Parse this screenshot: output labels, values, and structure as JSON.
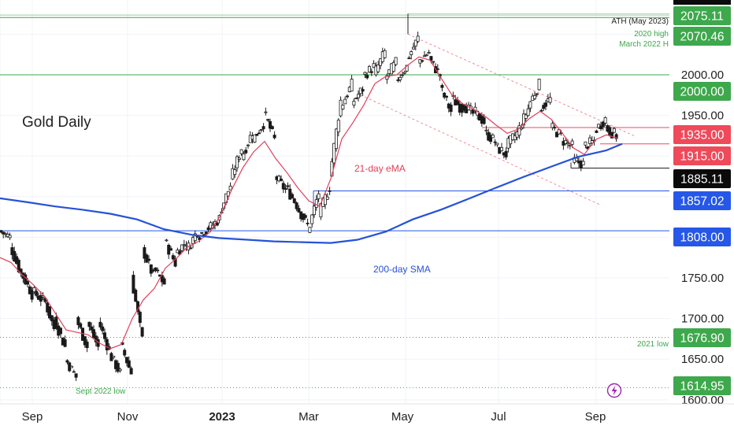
{
  "chart_data": {
    "type": "candlestick",
    "title": "Gold Daily",
    "x_ticks": [
      "Sep",
      "Nov",
      "2023",
      "Mar",
      "May",
      "Jul",
      "Sep"
    ],
    "y_ticks": [
      "1600.00",
      "1650.00",
      "1700.00",
      "1750.00",
      "1800.00",
      "1850.00",
      "1900.00",
      "1950.00",
      "2000.00",
      "2050.00"
    ],
    "ylim": [
      1595,
      2092
    ],
    "x_range": [
      "2022-08-19",
      "2023-10-18"
    ],
    "series": [
      {
        "name": "21-day eMA",
        "color": "#e0405a",
        "points": [
          [
            "2022-08-19",
            1775
          ],
          [
            "2022-08-26",
            1769
          ],
          [
            "2022-09-02",
            1754
          ],
          [
            "2022-09-09",
            1742
          ],
          [
            "2022-09-16",
            1728
          ],
          [
            "2022-09-23",
            1707
          ],
          [
            "2022-09-30",
            1686
          ],
          [
            "2022-10-07",
            1683
          ],
          [
            "2022-10-14",
            1680
          ],
          [
            "2022-10-21",
            1670
          ],
          [
            "2022-10-28",
            1663
          ],
          [
            "2022-11-04",
            1668
          ],
          [
            "2022-11-11",
            1700
          ],
          [
            "2022-11-18",
            1723
          ],
          [
            "2022-11-25",
            1737
          ],
          [
            "2022-12-02",
            1762
          ],
          [
            "2022-12-09",
            1774
          ],
          [
            "2022-12-16",
            1788
          ],
          [
            "2022-12-23",
            1795
          ],
          [
            "2022-12-30",
            1806
          ],
          [
            "2023-01-06",
            1827
          ],
          [
            "2023-01-13",
            1858
          ],
          [
            "2023-01-20",
            1885
          ],
          [
            "2023-01-27",
            1905
          ],
          [
            "2023-02-03",
            1918
          ],
          [
            "2023-02-10",
            1897
          ],
          [
            "2023-02-17",
            1880
          ],
          [
            "2023-02-24",
            1861
          ],
          [
            "2023-03-03",
            1845
          ],
          [
            "2023-03-10",
            1838
          ],
          [
            "2023-03-17",
            1872
          ],
          [
            "2023-03-24",
            1921
          ],
          [
            "2023-03-31",
            1941
          ],
          [
            "2023-04-07",
            1963
          ],
          [
            "2023-04-14",
            1989
          ],
          [
            "2023-04-21",
            1998
          ],
          [
            "2023-04-28",
            2000
          ],
          [
            "2023-05-05",
            2012
          ],
          [
            "2023-05-12",
            2022
          ],
          [
            "2023-05-19",
            2018
          ],
          [
            "2023-05-26",
            1996
          ],
          [
            "2023-06-02",
            1975
          ],
          [
            "2023-06-09",
            1964
          ],
          [
            "2023-06-16",
            1957
          ],
          [
            "2023-06-23",
            1949
          ],
          [
            "2023-06-30",
            1938
          ],
          [
            "2023-07-07",
            1928
          ],
          [
            "2023-07-14",
            1933
          ],
          [
            "2023-07-21",
            1946
          ],
          [
            "2023-07-28",
            1955
          ],
          [
            "2023-08-04",
            1945
          ],
          [
            "2023-08-11",
            1928
          ],
          [
            "2023-08-18",
            1910
          ],
          [
            "2023-08-25",
            1902
          ],
          [
            "2023-09-01",
            1920
          ],
          [
            "2023-09-08",
            1926
          ],
          [
            "2023-09-15",
            1922
          ]
        ]
      },
      {
        "name": "200-day SMA",
        "color": "#2552d8",
        "points": [
          [
            "2022-08-19",
            1848
          ],
          [
            "2022-09-06",
            1843
          ],
          [
            "2022-09-23",
            1838
          ],
          [
            "2022-10-10",
            1834
          ],
          [
            "2022-10-28",
            1829
          ],
          [
            "2022-11-14",
            1822
          ],
          [
            "2022-12-01",
            1810
          ],
          [
            "2022-12-19",
            1803
          ],
          [
            "2023-01-05",
            1799
          ],
          [
            "2023-01-23",
            1797
          ],
          [
            "2023-02-09",
            1795
          ],
          [
            "2023-02-27",
            1794
          ],
          [
            "2023-03-17",
            1793
          ],
          [
            "2023-04-03",
            1797
          ],
          [
            "2023-04-21",
            1807
          ],
          [
            "2023-05-08",
            1822
          ],
          [
            "2023-05-26",
            1834
          ],
          [
            "2023-06-12",
            1847
          ],
          [
            "2023-06-30",
            1861
          ],
          [
            "2023-07-17",
            1874
          ],
          [
            "2023-08-04",
            1887
          ],
          [
            "2023-08-21",
            1899
          ],
          [
            "2023-09-08",
            1907
          ],
          [
            "2023-09-18",
            1915
          ]
        ]
      },
      {
        "name": "",
        "color": "#4a7f4a",
        "bars": [
          [
            "2022-08-19",
            1808,
            1800
          ],
          [
            "2022-08-26",
            1790,
            1755
          ],
          [
            "2022-09-02",
            1757,
            1730
          ],
          [
            "2022-09-09",
            1734,
            1722
          ],
          [
            "2022-09-16",
            1728,
            1688
          ],
          [
            "2022-09-23",
            1700,
            1665
          ],
          [
            "2022-09-30",
            1651,
            1628
          ],
          [
            "2022-10-07",
            1700,
            1665
          ],
          [
            "2022-10-14",
            1696,
            1665
          ],
          [
            "2022-10-21",
            1698,
            1660
          ],
          [
            "2022-10-28",
            1657,
            1633
          ],
          [
            "2022-11-04",
            1670,
            1633
          ],
          [
            "2022-11-11",
            1752,
            1674
          ],
          [
            "2022-11-18",
            1786,
            1752
          ],
          [
            "2022-11-25",
            1762,
            1743
          ],
          [
            "2022-12-02",
            1797,
            1768
          ],
          [
            "2022-12-09",
            1780,
            1795
          ],
          [
            "2022-12-16",
            1783,
            1808
          ],
          [
            "2022-12-23",
            1801,
            1812
          ],
          [
            "2022-12-30",
            1810,
            1823
          ],
          [
            "2023-01-06",
            1830,
            1864
          ],
          [
            "2023-01-13",
            1870,
            1910
          ],
          [
            "2023-01-20",
            1898,
            1930
          ],
          [
            "2023-01-27",
            1920,
            1940
          ],
          [
            "2023-02-03",
            1955,
            1920
          ],
          [
            "2023-02-10",
            1876,
            1858
          ],
          [
            "2023-02-17",
            1862,
            1840
          ],
          [
            "2023-02-24",
            1838,
            1815
          ],
          [
            "2023-03-03",
            1806,
            1855
          ],
          [
            "2023-03-10",
            1828,
            1862
          ],
          [
            "2023-03-17",
            1875,
            1968
          ],
          [
            "2023-03-24",
            1960,
            1988
          ],
          [
            "2023-03-31",
            1965,
            1983
          ],
          [
            "2023-04-07",
            1998,
            2010
          ],
          [
            "2023-04-14",
            2000,
            2028
          ],
          [
            "2023-04-21",
            1995,
            2015
          ],
          [
            "2023-04-28",
            1993,
            2010
          ],
          [
            "2023-05-05",
            2018,
            2045
          ],
          [
            "2023-05-12",
            2016,
            2028
          ],
          [
            "2023-05-19",
            2020,
            1999
          ],
          [
            "2023-05-26",
            1985,
            1955
          ],
          [
            "2023-06-02",
            1972,
            1958
          ],
          [
            "2023-06-09",
            1965,
            1952
          ],
          [
            "2023-06-16",
            1956,
            1942
          ],
          [
            "2023-06-23",
            1930,
            1918
          ],
          [
            "2023-06-30",
            1912,
            1902
          ],
          [
            "2023-07-07",
            1912,
            1928
          ],
          [
            "2023-07-14",
            1928,
            1958
          ],
          [
            "2023-07-21",
            1962,
            1988
          ],
          [
            "2023-07-28",
            1958,
            1970
          ],
          [
            "2023-08-04",
            1936,
            1925
          ],
          [
            "2023-08-11",
            1920,
            1912
          ],
          [
            "2023-08-18",
            1895,
            1890
          ],
          [
            "2023-08-25",
            1912,
            1918
          ],
          [
            "2023-09-01",
            1930,
            1946
          ],
          [
            "2023-09-08",
            1935,
            1925
          ],
          [
            "2023-09-15",
            1918,
            1910
          ]
        ]
      }
    ],
    "horizontal_lines": [
      {
        "label": "2075.11",
        "value": 2075.11,
        "tag_color": "#3ea84c",
        "line_color": "#cccccc"
      },
      {
        "label": "2070.46",
        "value": 2070.46,
        "tag_color": "#3ea84c",
        "line_color": "#3ea84c"
      },
      {
        "label": "2000.00",
        "value": 2000.0,
        "tag_color": "#3ea84c",
        "line_color": "#3ea84c"
      },
      {
        "label": "1935.00",
        "value": 1935.0,
        "tag_color": "#ef4a5a",
        "line_color": "#ef4a5a"
      },
      {
        "label": "1915.00",
        "value": 1915.0,
        "tag_color": "#ef4a5a",
        "line_color": "#ef4a5a"
      },
      {
        "label": "1885.11",
        "value": 1885.11,
        "tag_color": "#0a0a0a",
        "line_color": "#222222"
      },
      {
        "label": "1857.02",
        "value": 1857.02,
        "tag_color": "#2657e8",
        "line_color": "#2657e8"
      },
      {
        "label": "1808.00",
        "value": 1808.0,
        "tag_color": "#2657e8",
        "line_color": "#2657e8"
      },
      {
        "label": "1676.90",
        "value": 1676.9,
        "tag_color": "#3ea84c",
        "line_color": "#3ea84c"
      },
      {
        "label": "1614.95",
        "value": 1614.95,
        "tag_color": "#3ea84c",
        "line_color": "#3ea84c"
      }
    ],
    "annotations": [
      {
        "text": "ATH (May 2023)",
        "color": "#222222"
      },
      {
        "text": "2020 high",
        "color": "#3ea84c"
      },
      {
        "text": "March 2022 H",
        "color": "#3ea84c"
      },
      {
        "text": "21-day eMA",
        "color": "#e0405a"
      },
      {
        "text": "200-day SMA",
        "color": "#2552d8"
      },
      {
        "text": "2021 low",
        "color": "#3ea84c"
      },
      {
        "text": "Sept 2022 low",
        "color": "#3ea84c"
      }
    ],
    "channel_color": "#f08a96",
    "icons": [
      "lightning-icon"
    ]
  }
}
